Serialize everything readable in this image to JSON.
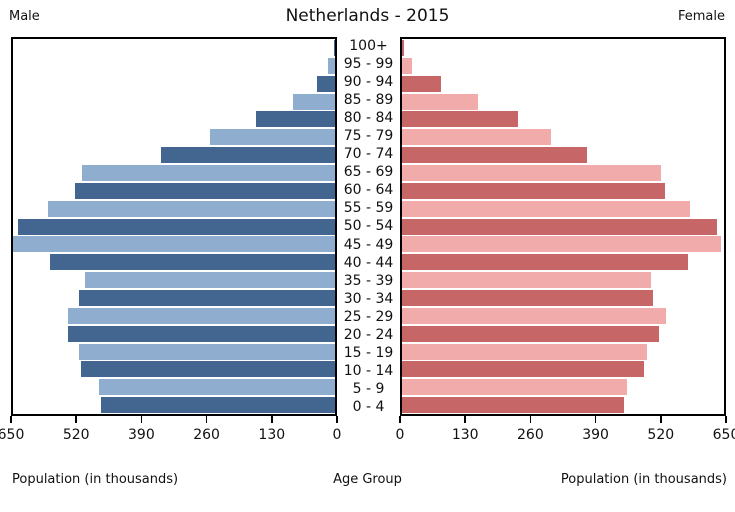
{
  "title": "Netherlands - 2015",
  "male_label": "Male",
  "female_label": "Female",
  "captions": {
    "left": "Population (in thousands)",
    "center": "Age Group",
    "right": "Population (in thousands)"
  },
  "colors": {
    "male_dark": "#426690",
    "male_light": "#8fadce",
    "female_dark": "#c76666",
    "female_light": "#f2abab",
    "axis": "#000000",
    "background": "#ffffff"
  },
  "chart_data": {
    "type": "bar",
    "subtype": "population-pyramid",
    "title": "Netherlands - 2015",
    "xlabel": "Population (in thousands)",
    "ylabel": "Age Group",
    "xlim": [
      0,
      650
    ],
    "xticks": [
      0,
      130,
      260,
      390,
      520,
      650
    ],
    "grid": false,
    "legend_position": "top-corners",
    "categories": [
      "100+",
      "95 - 99",
      "90 - 94",
      "85 - 89",
      "80 - 84",
      "75 - 79",
      "70 - 74",
      "65 - 69",
      "60 - 64",
      "55 - 59",
      "50 - 54",
      "45 - 49",
      "40 - 44",
      "35 - 39",
      "30 - 34",
      "25 - 29",
      "20 - 24",
      "15 - 19",
      "10 - 14",
      "5 - 9",
      "0 - 4"
    ],
    "series": [
      {
        "name": "Male",
        "values": [
          2,
          15,
          36,
          84,
          160,
          253,
          351,
          510,
          525,
          580,
          640,
          650,
          576,
          504,
          516,
          539,
          540,
          517,
          512,
          477,
          473
        ]
      },
      {
        "name": "Female",
        "values": [
          5,
          20,
          78,
          154,
          235,
          301,
          374,
          522,
          531,
          582,
          636,
          644,
          577,
          502,
          507,
          532,
          519,
          494,
          489,
          454,
          448
        ]
      }
    ]
  }
}
